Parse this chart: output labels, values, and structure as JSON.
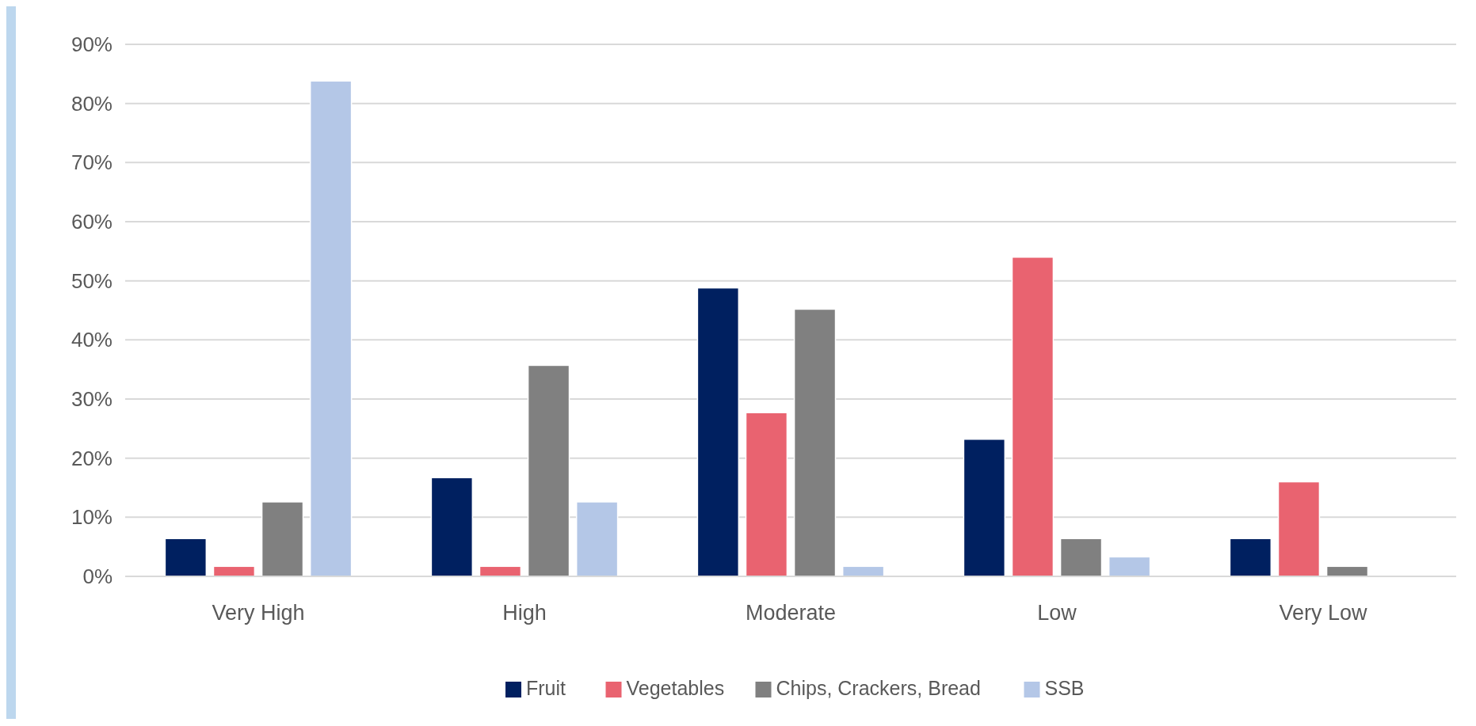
{
  "chart_data": {
    "type": "bar",
    "categories": [
      "Very High",
      "High",
      "Moderate",
      "Low",
      "Very Low"
    ],
    "series": [
      {
        "name": "Fruit",
        "color": "#002060",
        "values": [
          6.4,
          16.7,
          48.8,
          23.2,
          6.4
        ]
      },
      {
        "name": "Vegetables",
        "color": "#e96370",
        "values": [
          1.7,
          1.7,
          27.7,
          54.0,
          16.0
        ]
      },
      {
        "name": "Chips, Crackers, Bread",
        "color": "#808080",
        "values": [
          12.6,
          35.7,
          45.2,
          6.4,
          1.7
        ]
      },
      {
        "name": "SSB",
        "color": "#b4c7e7",
        "values": [
          83.8,
          12.6,
          1.7,
          3.3,
          0
        ]
      }
    ],
    "ylim": [
      0,
      90
    ],
    "yticks": [
      {
        "value": 0,
        "label": "0%"
      },
      {
        "value": 10,
        "label": "10%"
      },
      {
        "value": 20,
        "label": "20%"
      },
      {
        "value": 30,
        "label": "30%"
      },
      {
        "value": 40,
        "label": "40%"
      },
      {
        "value": 50,
        "label": "50%"
      },
      {
        "value": 60,
        "label": "60%"
      },
      {
        "value": 70,
        "label": "70%"
      },
      {
        "value": 80,
        "label": "80%"
      },
      {
        "value": 90,
        "label": "90%"
      }
    ],
    "grid": "y",
    "legend": "bottom"
  }
}
